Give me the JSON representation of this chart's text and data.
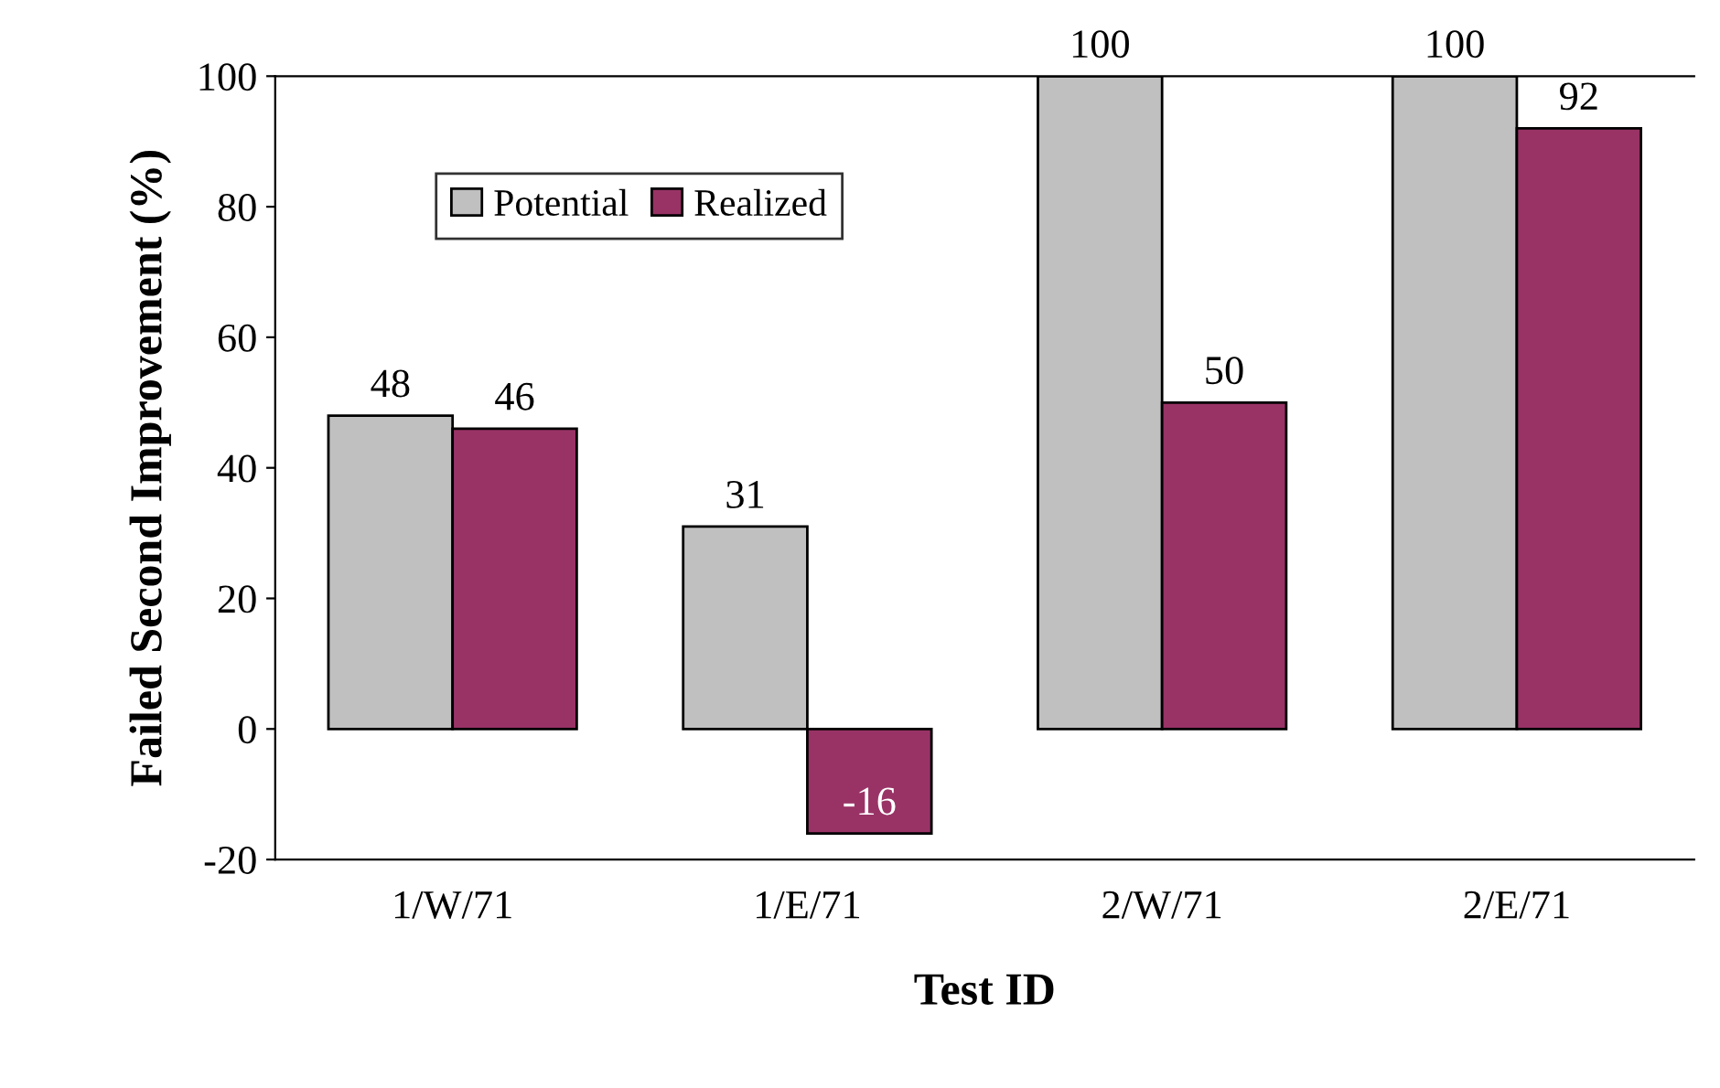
{
  "chart_data": {
    "type": "bar",
    "xlabel": "Test ID",
    "ylabel": "Failed Second Improvement (%)",
    "categories": [
      "1/W/71",
      "1/E/71",
      "2/W/71",
      "2/E/71"
    ],
    "series": [
      {
        "name": "Potential",
        "color": "#c0c0c0",
        "values": [
          48,
          31,
          100,
          100
        ]
      },
      {
        "name": "Realized",
        "color": "#993366",
        "values": [
          46,
          -16,
          50,
          92
        ]
      }
    ],
    "ylim": [
      -20,
      100
    ],
    "yticks": [
      -20,
      0,
      20,
      40,
      60,
      80,
      100
    ],
    "data_labels": true,
    "grid": false,
    "legend": "top left"
  }
}
